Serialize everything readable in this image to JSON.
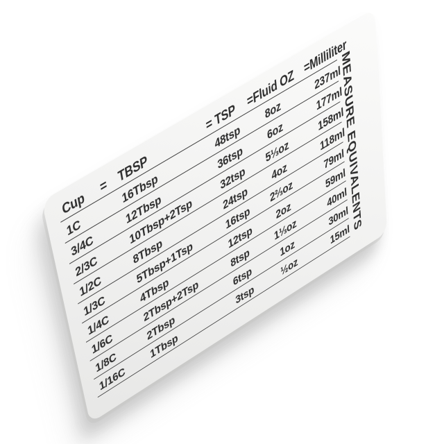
{
  "photo": {
    "background_color": "#ffffff"
  },
  "card": {
    "vertical_title": "MEASURE EQUIVALENTS",
    "surface_color": "#f1f1f0",
    "text_color": "#2d2d2d",
    "line_color": "#3d3d3d",
    "table": {
      "header": {
        "cup": "Cup",
        "equals": "=",
        "tbsp": "TBSP",
        "tsp": "= TSP",
        "fluid_oz": "=Fluid OZ",
        "milliliter": "=Milliliter"
      },
      "rows": [
        {
          "cup": "1C",
          "tbsp": "16Tbsp",
          "tsp": "48tsp",
          "floz": "8oz",
          "ml": "237ml"
        },
        {
          "cup": "3/4C",
          "tbsp": "12Tbsp",
          "tsp": "36tsp",
          "floz": "6oz",
          "ml": "177ml"
        },
        {
          "cup": "2/3C",
          "tbsp": "10Tbsp+2Tsp",
          "tsp": "32tsp",
          "floz": "5⅓oz",
          "ml": "158ml"
        },
        {
          "cup": "1/2C",
          "tbsp": "8Tbsp",
          "tsp": "24tsp",
          "floz": "4oz",
          "ml": "118ml"
        },
        {
          "cup": "1/3C",
          "tbsp": "5Tbsp+1Tsp",
          "tsp": "16tsp",
          "floz": "2⅔oz",
          "ml": "79ml"
        },
        {
          "cup": "1/4C",
          "tbsp": "4Tbsp",
          "tsp": "12tsp",
          "floz": "2oz",
          "ml": "59ml"
        },
        {
          "cup": "1/6C",
          "tbsp": "2Tbsp+2Tsp",
          "tsp": "8tsp",
          "floz": "1⅓oz",
          "ml": "40ml"
        },
        {
          "cup": "1/8C",
          "tbsp": "2Tbsp",
          "tsp": "6tsp",
          "floz": "1oz",
          "ml": "30ml"
        },
        {
          "cup": "1/16C",
          "tbsp": "1Tbsp",
          "tsp": "3tsp",
          "floz": "½oz",
          "ml": "15ml"
        }
      ]
    }
  }
}
